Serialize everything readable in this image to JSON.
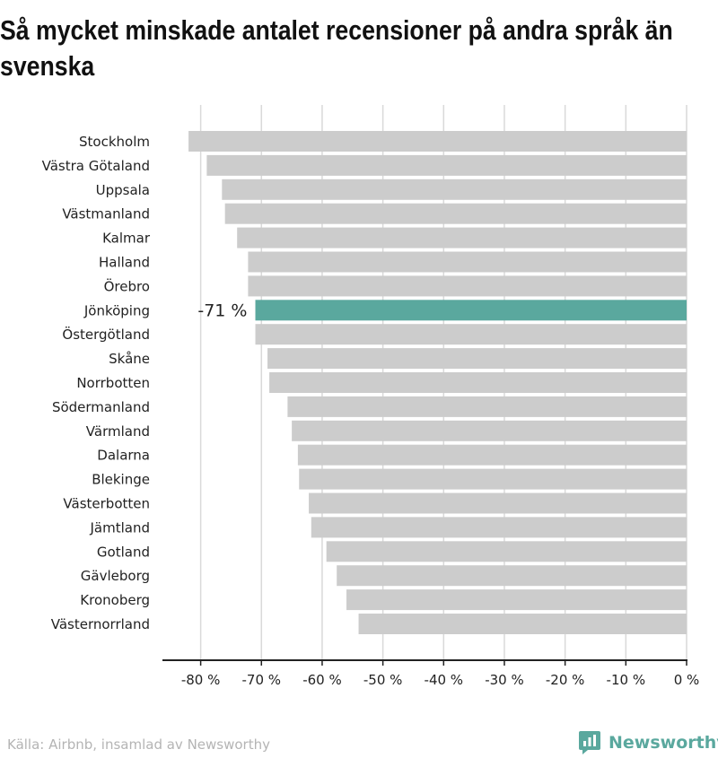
{
  "title": "Så mycket minskade antalet recensioner på andra språk än svenska",
  "source": "Källa: Airbnb, insamlad av Newsworthy",
  "brand": {
    "name": "Newsworthy",
    "color": "#5aa89e",
    "icon": "newsworthy-logo-icon"
  },
  "colors": {
    "bar": "#cccccc",
    "highlight": "#5aa89e",
    "grid": "#d9d9d9",
    "axis": "#222222"
  },
  "chart_data": {
    "type": "bar",
    "orientation": "horizontal",
    "categories": [
      "Stockholm",
      "Västra Götaland",
      "Uppsala",
      "Västmanland",
      "Kalmar",
      "Halland",
      "Örebro",
      "Jönköping",
      "Östergötland",
      "Skåne",
      "Norrbotten",
      "Södermanland",
      "Värmland",
      "Dalarna",
      "Blekinge",
      "Västerbotten",
      "Jämtland",
      "Gotland",
      "Gävleborg",
      "Kronoberg",
      "Västernorrland"
    ],
    "values": [
      -82,
      -79,
      -76.5,
      -76,
      -74,
      -72.2,
      -72.2,
      -71,
      -71,
      -69,
      -68.7,
      -65.7,
      -65,
      -64,
      -63.8,
      -62.2,
      -61.8,
      -59.3,
      -57.6,
      -56,
      -54
    ],
    "highlight": {
      "category": "Jönköping",
      "label": "-71 %"
    },
    "xlim": [
      -86,
      0
    ],
    "xticks": [
      -80,
      -70,
      -60,
      -50,
      -40,
      -30,
      -20,
      -10,
      0
    ],
    "xtick_labels": [
      "-80 %",
      "-70 %",
      "-60 %",
      "-50 %",
      "-40 %",
      "-30 %",
      "-20 %",
      "-10 %",
      "0 %"
    ],
    "grid": true,
    "legend": "none",
    "xlabel": "",
    "ylabel": ""
  }
}
